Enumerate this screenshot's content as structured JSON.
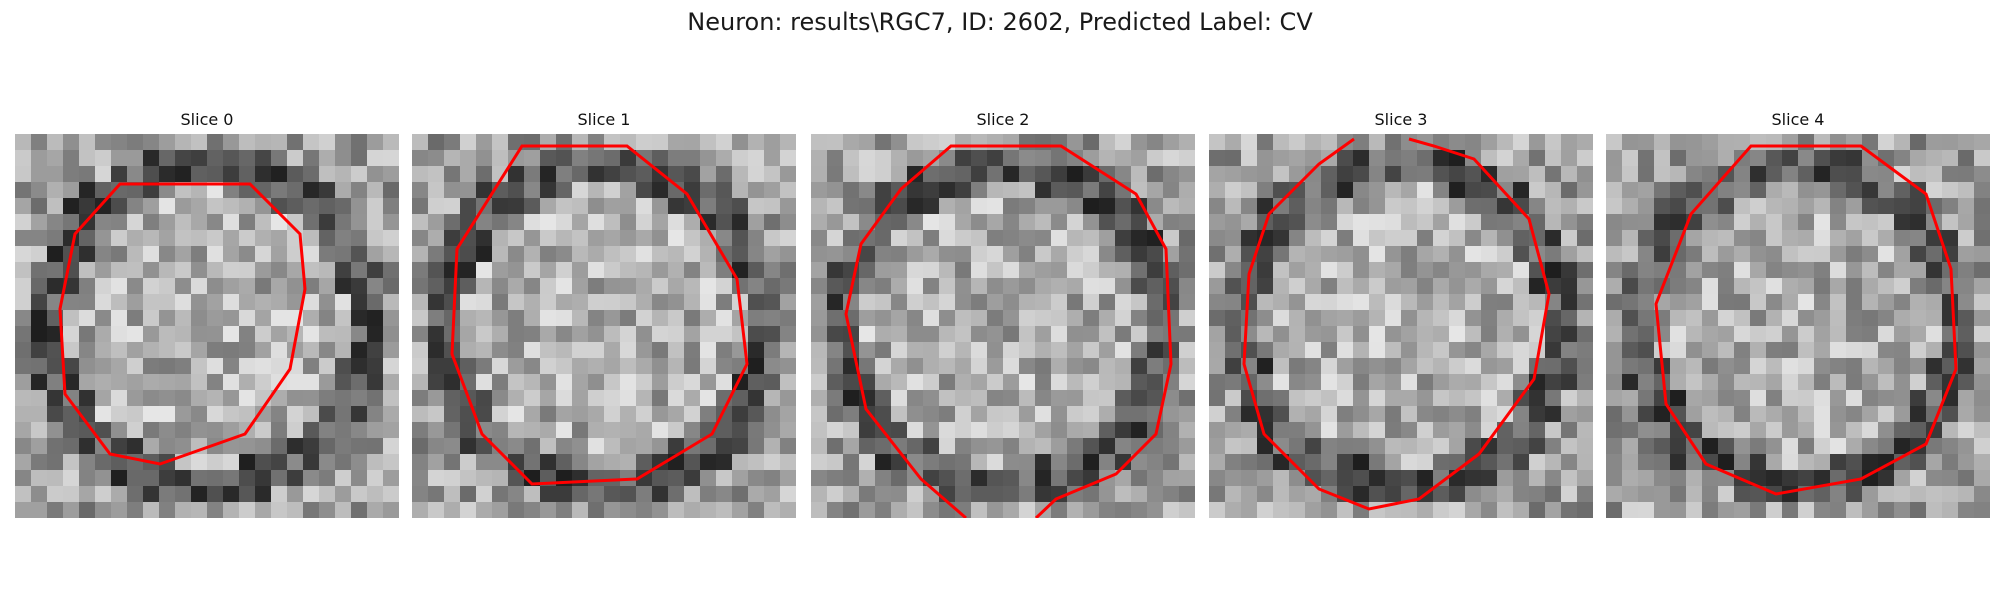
{
  "figure": {
    "title": "Neuron: results\\RGC7, ID: 2602, Predicted Label: CV"
  },
  "panels": [
    {
      "title": "Slice 0"
    },
    {
      "title": "Slice 1"
    },
    {
      "title": "Slice 2"
    },
    {
      "title": "Slice 3"
    },
    {
      "title": "Slice 4"
    }
  ],
  "colors": {
    "contour": "#ff0000"
  }
}
